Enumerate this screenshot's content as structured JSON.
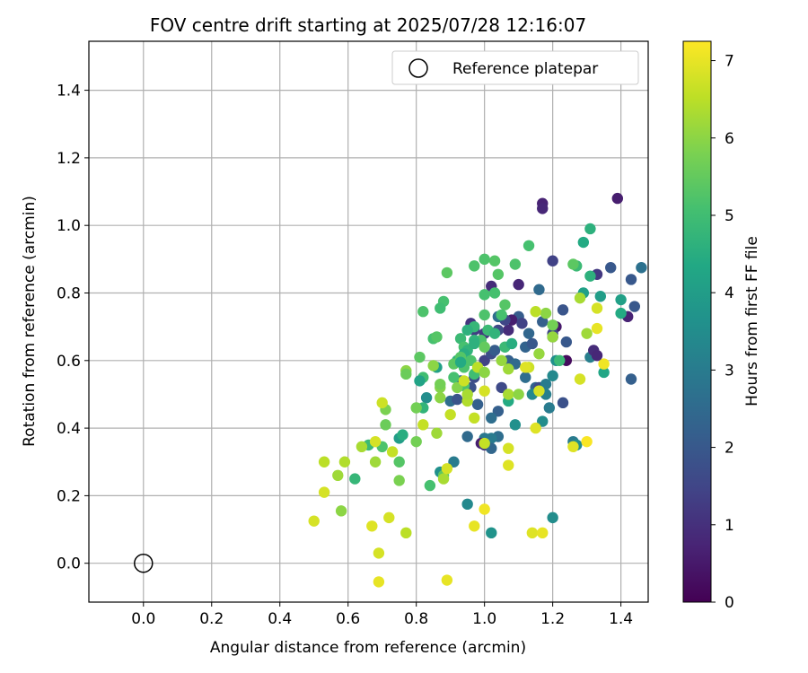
{
  "chart_data": {
    "type": "scatter",
    "title": "FOV centre drift starting at 2025/07/28 12:16:07",
    "xlabel": "Angular distance from reference (arcmin)",
    "ylabel": "Rotation from reference (arcmin)",
    "xlim": [
      -0.16,
      1.48
    ],
    "ylim": [
      -0.115,
      1.545
    ],
    "xticks": [
      "0.0",
      "0.2",
      "0.4",
      "0.6",
      "0.8",
      "1.0",
      "1.2",
      "1.4"
    ],
    "yticks": [
      "0.0",
      "0.2",
      "0.4",
      "0.6",
      "0.8",
      "1.0",
      "1.2",
      "1.4"
    ],
    "grid": true,
    "legend": {
      "label": "Reference platepar",
      "placement": "top-right"
    },
    "reference_point": [
      0.0,
      0.0
    ],
    "colorbar": {
      "label": "Hours from first FF file",
      "min": 0,
      "max": 7.25,
      "ticks": [
        "0",
        "1",
        "2",
        "3",
        "4",
        "5",
        "6",
        "7"
      ],
      "colormap": "viridis"
    },
    "points": [
      [
        1.39,
        1.08,
        0.6
      ],
      [
        1.17,
        1.065,
        0.7
      ],
      [
        1.17,
        1.05,
        0.8
      ],
      [
        1.2,
        0.895,
        1.4
      ],
      [
        1.02,
        0.82,
        0.9
      ],
      [
        1.1,
        0.825,
        0.8
      ],
      [
        1.33,
        0.855,
        1.2
      ],
      [
        1.37,
        0.875,
        2.0
      ],
      [
        1.43,
        0.84,
        2.0
      ],
      [
        1.46,
        0.875,
        2.7
      ],
      [
        1.44,
        0.76,
        2.0
      ],
      [
        1.42,
        0.73,
        0.7
      ],
      [
        1.43,
        0.545,
        2.2
      ],
      [
        1.24,
        0.6,
        0.2
      ],
      [
        1.23,
        0.475,
        1.8
      ],
      [
        1.24,
        0.655,
        2.0
      ],
      [
        1.23,
        0.75,
        1.9
      ],
      [
        1.2,
        0.67,
        1.3
      ],
      [
        1.21,
        0.7,
        0.5
      ],
      [
        1.2,
        0.68,
        1.5
      ],
      [
        1.17,
        0.715,
        2.2
      ],
      [
        1.16,
        0.81,
        2.5
      ],
      [
        1.13,
        0.68,
        2.4
      ],
      [
        1.12,
        0.64,
        2.3
      ],
      [
        1.1,
        0.73,
        2.1
      ],
      [
        1.08,
        0.72,
        0.6
      ],
      [
        1.07,
        0.69,
        0.9
      ],
      [
        1.06,
        0.72,
        1.5
      ],
      [
        1.04,
        0.69,
        1.6
      ],
      [
        1.04,
        0.73,
        2.6
      ],
      [
        1.0,
        0.68,
        1.2
      ],
      [
        0.96,
        0.71,
        1.1
      ],
      [
        0.97,
        0.69,
        1.3
      ],
      [
        1.0,
        0.6,
        1.4
      ],
      [
        1.02,
        0.62,
        1.7
      ],
      [
        1.03,
        0.63,
        2.1
      ],
      [
        1.07,
        0.6,
        2.2
      ],
      [
        1.09,
        0.59,
        2.5
      ],
      [
        1.12,
        0.55,
        2.6
      ],
      [
        1.15,
        0.52,
        2.3
      ],
      [
        1.16,
        0.52,
        1.6
      ],
      [
        1.18,
        0.53,
        3.0
      ],
      [
        1.18,
        0.5,
        3.1
      ],
      [
        1.19,
        0.46,
        3.0
      ],
      [
        1.17,
        0.42,
        3.5
      ],
      [
        1.21,
        0.6,
        3.6
      ],
      [
        1.2,
        0.555,
        3.4
      ],
      [
        1.22,
        0.6,
        4.9
      ],
      [
        1.11,
        0.71,
        1.4
      ],
      [
        1.14,
        0.65,
        2.0
      ],
      [
        1.05,
        0.52,
        1.6
      ],
      [
        1.04,
        0.45,
        2.2
      ],
      [
        1.02,
        0.43,
        2.6
      ],
      [
        1.04,
        0.375,
        2.6
      ],
      [
        1.02,
        0.37,
        3.0
      ],
      [
        1.0,
        0.37,
        2.9
      ],
      [
        0.99,
        0.355,
        0.6
      ],
      [
        1.0,
        0.35,
        1.1
      ],
      [
        1.02,
        0.34,
        2.4
      ],
      [
        0.95,
        0.375,
        2.5
      ],
      [
        0.98,
        0.47,
        2.2
      ],
      [
        0.96,
        0.52,
        1.8
      ],
      [
        0.97,
        0.55,
        1.7
      ],
      [
        0.93,
        0.54,
        2.1
      ],
      [
        0.9,
        0.48,
        2.6
      ],
      [
        0.92,
        0.485,
        1.9
      ],
      [
        0.91,
        0.3,
        3.0
      ],
      [
        0.87,
        0.27,
        3.6
      ],
      [
        0.95,
        0.175,
        3.4
      ],
      [
        1.02,
        0.09,
        3.7
      ],
      [
        1.2,
        0.135,
        3.5
      ],
      [
        1.26,
        0.36,
        3.0
      ],
      [
        1.27,
        0.35,
        3.5
      ],
      [
        1.09,
        0.41,
        3.6
      ],
      [
        1.14,
        0.5,
        3.4
      ],
      [
        1.07,
        0.48,
        4.4
      ],
      [
        1.31,
        0.61,
        3.1
      ],
      [
        1.34,
        0.79,
        4.0
      ],
      [
        1.4,
        0.78,
        4.1
      ],
      [
        1.4,
        0.74,
        4.4
      ],
      [
        1.35,
        0.565,
        4.3
      ],
      [
        1.31,
        0.99,
        4.6
      ],
      [
        1.29,
        0.95,
        4.4
      ],
      [
        1.31,
        0.85,
        4.6
      ],
      [
        1.27,
        0.88,
        4.9
      ],
      [
        1.26,
        0.885,
        5.4
      ],
      [
        1.29,
        0.8,
        4.1
      ],
      [
        1.13,
        0.94,
        5.1
      ],
      [
        1.09,
        0.885,
        5.2
      ],
      [
        1.03,
        0.895,
        5.3
      ],
      [
        1.0,
        0.9,
        5.2
      ],
      [
        0.97,
        0.88,
        5.2
      ],
      [
        1.04,
        0.855,
        5.3
      ],
      [
        1.03,
        0.8,
        5.1
      ],
      [
        1.0,
        0.795,
        5.1
      ],
      [
        1.06,
        0.765,
        5.3
      ],
      [
        1.05,
        0.735,
        5.1
      ],
      [
        1.0,
        0.735,
        5.2
      ],
      [
        1.01,
        0.69,
        4.9
      ],
      [
        0.99,
        0.66,
        5.2
      ],
      [
        0.97,
        0.7,
        4.8
      ],
      [
        0.95,
        0.69,
        4.6
      ],
      [
        0.97,
        0.66,
        4.7
      ],
      [
        0.93,
        0.665,
        4.9
      ],
      [
        0.94,
        0.64,
        5.1
      ],
      [
        0.95,
        0.63,
        4.7
      ],
      [
        0.97,
        0.65,
        4.6
      ],
      [
        0.94,
        0.62,
        4.5
      ],
      [
        0.92,
        0.6,
        4.7
      ],
      [
        0.93,
        0.61,
        5.3
      ],
      [
        0.91,
        0.59,
        5.4
      ],
      [
        0.94,
        0.58,
        5.2
      ],
      [
        0.96,
        0.6,
        5.2
      ],
      [
        0.97,
        0.56,
        5.0
      ],
      [
        0.91,
        0.55,
        5.1
      ],
      [
        0.94,
        0.525,
        5.2
      ],
      [
        0.86,
        0.58,
        4.1
      ],
      [
        0.88,
        0.775,
        5.1
      ],
      [
        0.87,
        0.755,
        5.0
      ],
      [
        0.89,
        0.86,
        5.4
      ],
      [
        0.82,
        0.745,
        5.2
      ],
      [
        0.85,
        0.665,
        5.1
      ],
      [
        0.86,
        0.67,
        5.3
      ],
      [
        0.81,
        0.61,
        5.4
      ],
      [
        0.82,
        0.55,
        5.0
      ],
      [
        0.81,
        0.54,
        4.2
      ],
      [
        0.83,
        0.49,
        3.5
      ],
      [
        0.82,
        0.46,
        4.7
      ],
      [
        0.8,
        0.46,
        5.7
      ],
      [
        0.85,
        0.585,
        6.0
      ],
      [
        0.77,
        0.57,
        6.0
      ],
      [
        0.77,
        0.56,
        5.6
      ],
      [
        0.87,
        0.52,
        5.9
      ],
      [
        0.87,
        0.53,
        5.7
      ],
      [
        0.87,
        0.49,
        6.0
      ],
      [
        0.82,
        0.41,
        6.6
      ],
      [
        0.86,
        0.385,
        6.2
      ],
      [
        0.84,
        0.23,
        5.1
      ],
      [
        0.88,
        0.26,
        5.4
      ],
      [
        0.88,
        0.25,
        6.3
      ],
      [
        0.75,
        0.37,
        4.0
      ],
      [
        0.76,
        0.38,
        4.5
      ],
      [
        0.75,
        0.3,
        5.3
      ],
      [
        0.75,
        0.245,
        5.8
      ],
      [
        0.7,
        0.345,
        5.2
      ],
      [
        0.66,
        0.35,
        4.9
      ],
      [
        0.62,
        0.25,
        4.8
      ],
      [
        0.71,
        0.41,
        5.6
      ],
      [
        0.71,
        0.455,
        5.8
      ],
      [
        0.7,
        0.475,
        6.7
      ],
      [
        0.68,
        0.36,
        6.8
      ],
      [
        0.73,
        0.33,
        6.6
      ],
      [
        0.68,
        0.3,
        6.2
      ],
      [
        0.64,
        0.345,
        6.3
      ],
      [
        0.59,
        0.3,
        6.4
      ],
      [
        0.57,
        0.26,
        6.2
      ],
      [
        0.58,
        0.155,
        6.0
      ],
      [
        0.53,
        0.3,
        6.5
      ],
      [
        0.53,
        0.21,
        6.8
      ],
      [
        0.5,
        0.125,
        6.8
      ],
      [
        0.67,
        0.11,
        6.9
      ],
      [
        0.72,
        0.135,
        6.8
      ],
      [
        0.69,
        0.03,
        6.8
      ],
      [
        0.69,
        -0.055,
        7.0
      ],
      [
        0.77,
        0.09,
        6.5
      ],
      [
        0.8,
        0.36,
        5.7
      ],
      [
        0.9,
        0.44,
        6.6
      ],
      [
        0.95,
        0.48,
        6.4
      ],
      [
        0.95,
        0.5,
        6.3
      ],
      [
        0.92,
        0.52,
        5.9
      ],
      [
        0.94,
        0.54,
        6.7
      ],
      [
        0.98,
        0.58,
        6.5
      ],
      [
        1.0,
        0.51,
        6.8
      ],
      [
        1.0,
        0.355,
        6.6
      ],
      [
        0.97,
        0.43,
        6.6
      ],
      [
        0.89,
        0.28,
        6.8
      ],
      [
        0.89,
        -0.05,
        7.0
      ],
      [
        0.97,
        0.11,
        7.0
      ],
      [
        1.0,
        0.16,
        7.1
      ],
      [
        1.07,
        0.29,
        6.9
      ],
      [
        1.07,
        0.34,
        6.8
      ],
      [
        1.07,
        0.5,
        6.3
      ],
      [
        1.1,
        0.5,
        6.0
      ],
      [
        1.07,
        0.575,
        6.2
      ],
      [
        1.13,
        0.58,
        6.7
      ],
      [
        1.16,
        0.51,
        6.8
      ],
      [
        1.15,
        0.4,
        6.9
      ],
      [
        1.14,
        0.09,
        6.9
      ],
      [
        1.17,
        0.09,
        7.0
      ],
      [
        1.16,
        0.62,
        6.1
      ],
      [
        1.18,
        0.74,
        6.0
      ],
      [
        1.15,
        0.745,
        6.5
      ],
      [
        1.2,
        0.67,
        6.1
      ],
      [
        1.2,
        0.705,
        5.7
      ],
      [
        1.28,
        0.545,
        6.8
      ],
      [
        1.3,
        0.68,
        6.2
      ],
      [
        1.33,
        0.755,
        6.8
      ],
      [
        1.33,
        0.695,
        7.0
      ],
      [
        1.35,
        0.59,
        7.1
      ],
      [
        1.3,
        0.36,
        7.2
      ],
      [
        1.26,
        0.345,
        6.9
      ],
      [
        1.28,
        0.785,
        6.3
      ],
      [
        1.12,
        0.58,
        6.9
      ],
      [
        1.0,
        0.565,
        6.0
      ],
      [
        1.05,
        0.6,
        6.1
      ],
      [
        1.0,
        0.64,
        5.5
      ],
      [
        1.06,
        0.64,
        4.9
      ],
      [
        1.08,
        0.65,
        4.5
      ],
      [
        1.03,
        0.68,
        4.7
      ],
      [
        0.93,
        0.595,
        4.4
      ],
      [
        1.32,
        0.63,
        0.9
      ],
      [
        1.33,
        0.615,
        0.8
      ]
    ]
  }
}
